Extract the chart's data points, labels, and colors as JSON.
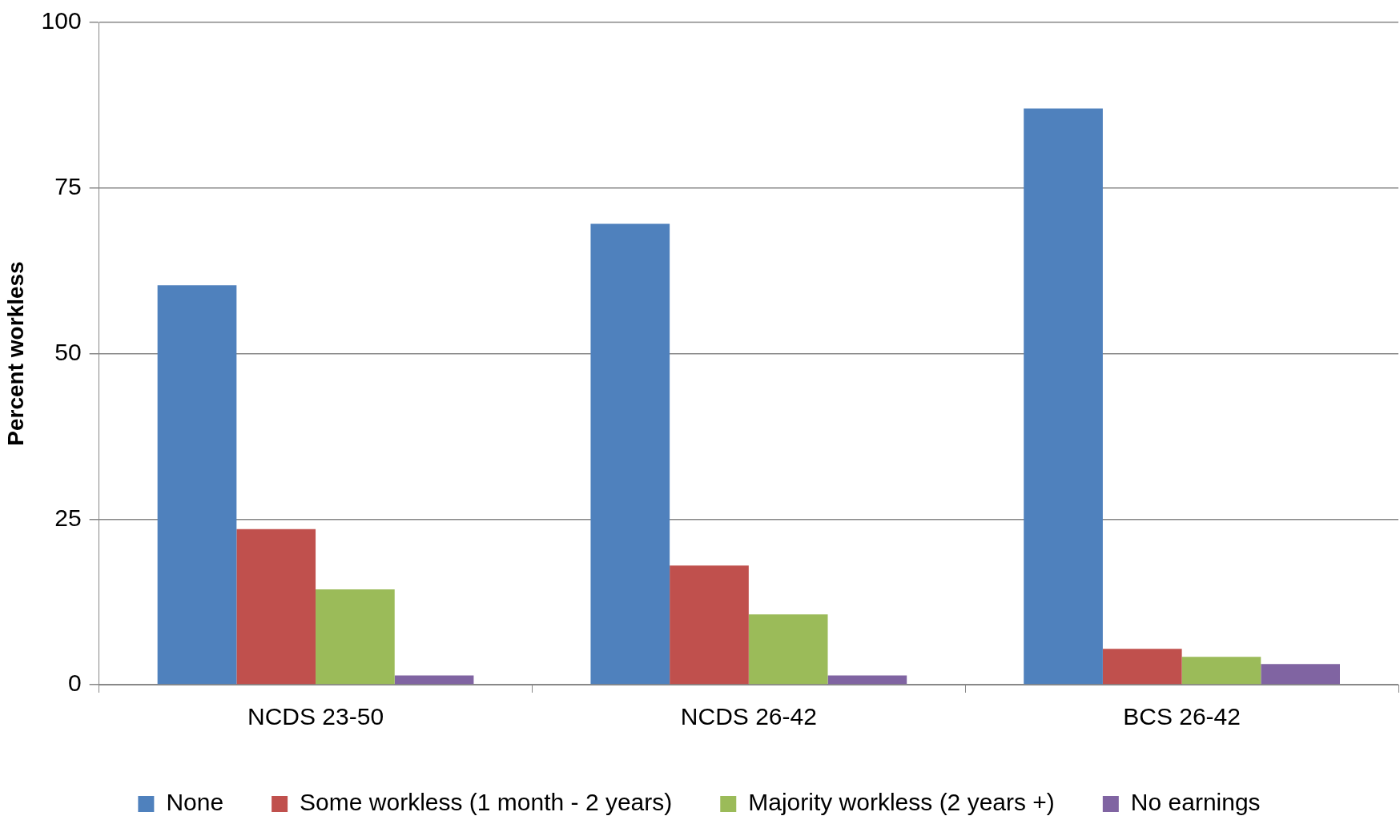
{
  "chart_data": {
    "type": "bar",
    "ylabel": "Percent workless",
    "categories": [
      "NCDS 23-50",
      "NCDS 26-42",
      "BCS 26-42"
    ],
    "series": [
      {
        "name": "None",
        "color": "#4f81bd",
        "values": [
          60.3,
          69.6,
          87.0
        ]
      },
      {
        "name": "Some workless (1 month - 2 years)",
        "color": "#c0504d",
        "values": [
          23.5,
          18.0,
          5.4
        ]
      },
      {
        "name": "Majority workless (2 years +)",
        "color": "#9bbb59",
        "values": [
          14.4,
          10.6,
          4.2
        ]
      },
      {
        "name": "No earnings",
        "color": "#8064a2",
        "values": [
          1.4,
          1.4,
          3.1
        ]
      }
    ],
    "ylim": [
      0,
      100
    ],
    "yticks": [
      0,
      25,
      50,
      75,
      100
    ],
    "grid": "y",
    "legend": "bottom"
  }
}
